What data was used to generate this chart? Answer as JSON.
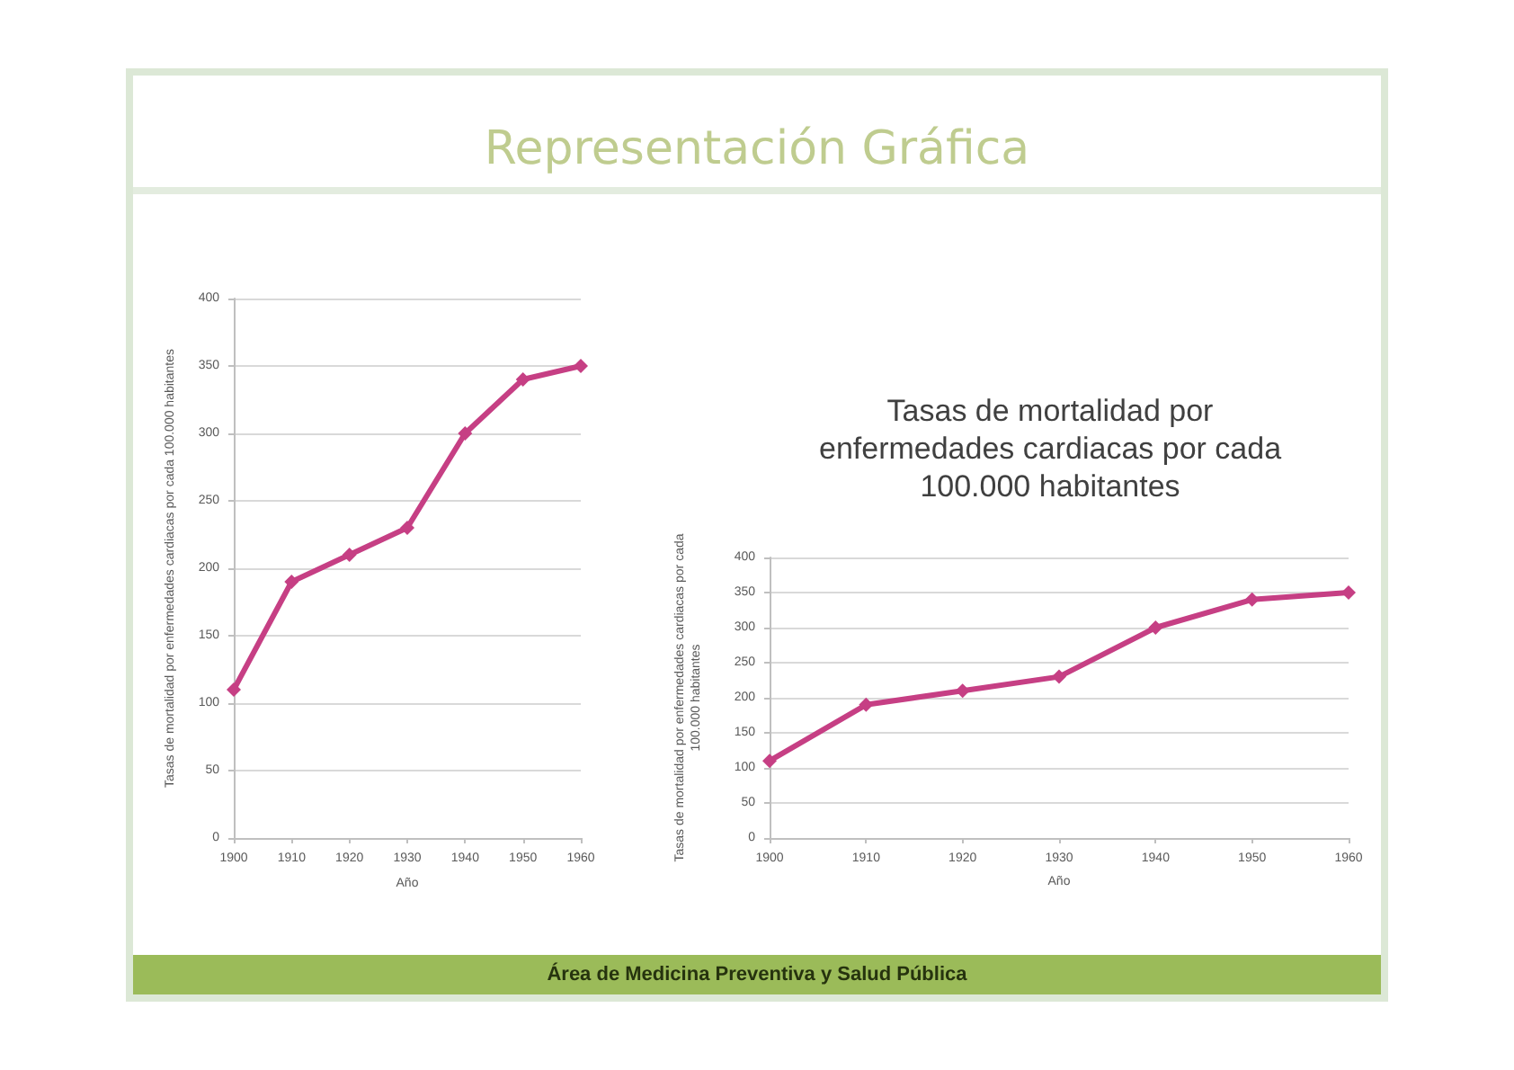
{
  "chart_data": [
    {
      "type": "other",
      "title": "Representación Gráfica",
      "annotations": [
        "Área de Medicina Preventiva y Salud Pública"
      ]
    },
    {
      "type": "line",
      "ylabel": "Tasas de mortalidad por enfermedades cardiacas por cada 100.000 habitantes",
      "xlabel": "Año",
      "categories": [
        "1900",
        "1910",
        "1920",
        "1930",
        "1940",
        "1950",
        "1960"
      ],
      "values": [
        110,
        190,
        210,
        230,
        300,
        340,
        350
      ],
      "color": "#c63f84",
      "ylim": [
        0,
        400
      ],
      "yticks": [
        0,
        50,
        100,
        150,
        200,
        250,
        300,
        350,
        400
      ],
      "grid": "y",
      "marker": "diamond",
      "line_style": "solid"
    },
    {
      "type": "line",
      "title": "Tasas de mortalidad por enfermedades cardiacas por cada 100.000 habitantes",
      "ylabel": "Tasas de mortalidad por enfermedades cardiacas por cada 100.000 habitantes",
      "xlabel": "Año",
      "categories": [
        "1900",
        "1910",
        "1920",
        "1930",
        "1940",
        "1950",
        "1960"
      ],
      "values": [
        110,
        190,
        210,
        230,
        300,
        340,
        350
      ],
      "color": "#c63f84",
      "ylim": [
        0,
        400
      ],
      "yticks": [
        0,
        50,
        100,
        150,
        200,
        250,
        300,
        350,
        400
      ],
      "grid": "y",
      "marker": "diamond",
      "line_style": "solid"
    }
  ]
}
